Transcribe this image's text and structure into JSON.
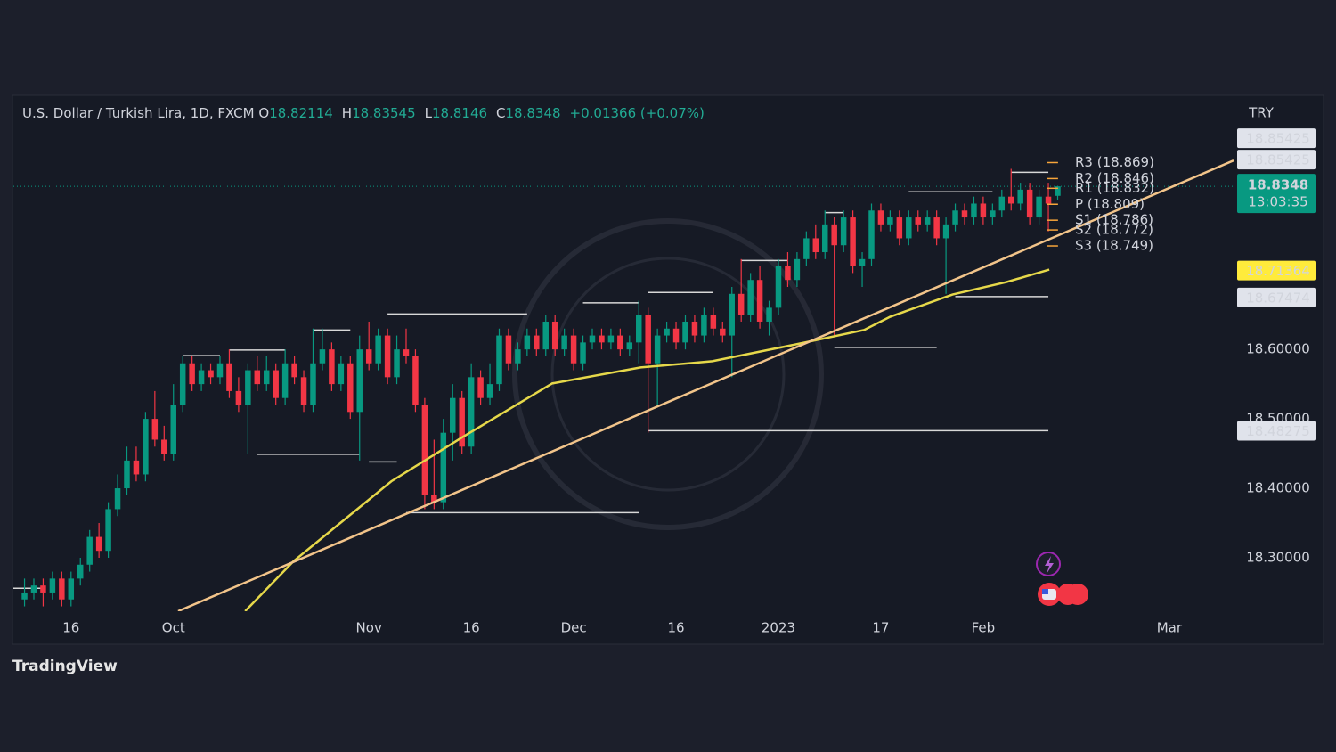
{
  "brand": "TradingView",
  "chart_data": {
    "type": "candlestick",
    "title": "U.S. Dollar / Turkish Lira, 1D, FXCM",
    "ohlc_letters": [
      "O",
      "H",
      "L",
      "C"
    ],
    "change": "+0.01366 (+0.07%)",
    "currency": "TRY",
    "countdown": "13:03:35",
    "up_color": "#089981",
    "down_color": "#f23645",
    "xlim": [
      -1.2,
      129.9
    ],
    "xticks": [
      {
        "value": 5,
        "label": "16"
      },
      {
        "value": 16,
        "label": "Oct"
      },
      {
        "value": 37,
        "label": "Nov"
      },
      {
        "value": 48,
        "label": "16"
      },
      {
        "value": 59,
        "label": "Dec"
      },
      {
        "value": 70,
        "label": "16"
      },
      {
        "value": 81,
        "label": "2023"
      },
      {
        "value": 92,
        "label": "17"
      },
      {
        "value": 103,
        "label": "Feb"
      },
      {
        "value": 123,
        "label": "Mar"
      }
    ],
    "ylim": [
      18.223,
      18.962
    ],
    "yticks": [
      {
        "value": 18.3,
        "label": "18.30000"
      },
      {
        "value": 18.4,
        "label": "18.40000"
      },
      {
        "value": 18.5,
        "label": "18.50000"
      },
      {
        "value": 18.6,
        "label": "18.60000"
      }
    ],
    "candles": [
      [
        18.24,
        18.27,
        18.23,
        18.25
      ],
      [
        18.25,
        18.27,
        18.24,
        18.26
      ],
      [
        18.26,
        18.27,
        18.23,
        18.25
      ],
      [
        18.25,
        18.28,
        18.24,
        18.27
      ],
      [
        18.27,
        18.28,
        18.23,
        18.24
      ],
      [
        18.24,
        18.28,
        18.23,
        18.27
      ],
      [
        18.27,
        18.3,
        18.26,
        18.29
      ],
      [
        18.29,
        18.34,
        18.28,
        18.33
      ],
      [
        18.33,
        18.35,
        18.3,
        18.31
      ],
      [
        18.31,
        18.38,
        18.3,
        18.37
      ],
      [
        18.37,
        18.42,
        18.36,
        18.4
      ],
      [
        18.4,
        18.46,
        18.39,
        18.44
      ],
      [
        18.44,
        18.46,
        18.41,
        18.42
      ],
      [
        18.42,
        18.51,
        18.41,
        18.5
      ],
      [
        18.5,
        18.54,
        18.46,
        18.47
      ],
      [
        18.47,
        18.49,
        18.44,
        18.45
      ],
      [
        18.45,
        18.55,
        18.44,
        18.52
      ],
      [
        18.52,
        18.59,
        18.51,
        18.58
      ],
      [
        18.58,
        18.59,
        18.54,
        18.55
      ],
      [
        18.55,
        18.58,
        18.54,
        18.57
      ],
      [
        18.57,
        18.58,
        18.55,
        18.56
      ],
      [
        18.56,
        18.59,
        18.55,
        18.58
      ],
      [
        18.58,
        18.6,
        18.53,
        18.54
      ],
      [
        18.54,
        18.56,
        18.51,
        18.52
      ],
      [
        18.52,
        18.58,
        18.45,
        18.57
      ],
      [
        18.57,
        18.59,
        18.54,
        18.55
      ],
      [
        18.55,
        18.59,
        18.54,
        18.57
      ],
      [
        18.57,
        18.58,
        18.52,
        18.53
      ],
      [
        18.53,
        18.6,
        18.52,
        18.58
      ],
      [
        18.58,
        18.59,
        18.55,
        18.56
      ],
      [
        18.56,
        18.57,
        18.51,
        18.52
      ],
      [
        18.52,
        18.63,
        18.51,
        18.58
      ],
      [
        18.58,
        18.63,
        18.57,
        18.6
      ],
      [
        18.6,
        18.61,
        18.54,
        18.55
      ],
      [
        18.55,
        18.59,
        18.54,
        18.58
      ],
      [
        18.58,
        18.59,
        18.5,
        18.51
      ],
      [
        18.51,
        18.62,
        18.44,
        18.6
      ],
      [
        18.6,
        18.64,
        18.57,
        18.58
      ],
      [
        18.58,
        18.63,
        18.57,
        18.62
      ],
      [
        18.62,
        18.63,
        18.55,
        18.56
      ],
      [
        18.56,
        18.62,
        18.55,
        18.6
      ],
      [
        18.6,
        18.63,
        18.58,
        18.59
      ],
      [
        18.59,
        18.6,
        18.51,
        18.52
      ],
      [
        18.52,
        18.53,
        18.37,
        18.39
      ],
      [
        18.39,
        18.47,
        18.37,
        18.38
      ],
      [
        18.38,
        18.5,
        18.37,
        18.48
      ],
      [
        18.48,
        18.55,
        18.44,
        18.53
      ],
      [
        18.53,
        18.54,
        18.45,
        18.46
      ],
      [
        18.46,
        18.58,
        18.45,
        18.56
      ],
      [
        18.56,
        18.57,
        18.52,
        18.53
      ],
      [
        18.53,
        18.58,
        18.52,
        18.55
      ],
      [
        18.55,
        18.63,
        18.54,
        18.62
      ],
      [
        18.62,
        18.63,
        18.57,
        18.58
      ],
      [
        18.58,
        18.61,
        18.57,
        18.6
      ],
      [
        18.6,
        18.63,
        18.59,
        18.62
      ],
      [
        18.62,
        18.63,
        18.59,
        18.6
      ],
      [
        18.6,
        18.65,
        18.59,
        18.64
      ],
      [
        18.64,
        18.65,
        18.59,
        18.6
      ],
      [
        18.6,
        18.63,
        18.59,
        18.62
      ],
      [
        18.62,
        18.63,
        18.57,
        18.58
      ],
      [
        18.58,
        18.62,
        18.57,
        18.61
      ],
      [
        18.61,
        18.63,
        18.6,
        18.62
      ],
      [
        18.62,
        18.63,
        18.6,
        18.61
      ],
      [
        18.61,
        18.63,
        18.6,
        18.62
      ],
      [
        18.62,
        18.63,
        18.59,
        18.6
      ],
      [
        18.6,
        18.62,
        18.59,
        18.61
      ],
      [
        18.61,
        18.67,
        18.58,
        18.65
      ],
      [
        18.65,
        18.66,
        18.48,
        18.58
      ],
      [
        18.58,
        18.63,
        18.52,
        18.62
      ],
      [
        18.62,
        18.64,
        18.61,
        18.63
      ],
      [
        18.63,
        18.64,
        18.6,
        18.61
      ],
      [
        18.61,
        18.65,
        18.6,
        18.64
      ],
      [
        18.64,
        18.65,
        18.61,
        18.62
      ],
      [
        18.62,
        18.66,
        18.61,
        18.65
      ],
      [
        18.65,
        18.66,
        18.62,
        18.63
      ],
      [
        18.63,
        18.64,
        18.61,
        18.62
      ],
      [
        18.62,
        18.69,
        18.56,
        18.68
      ],
      [
        18.68,
        18.73,
        18.64,
        18.65
      ],
      [
        18.65,
        18.71,
        18.64,
        18.7
      ],
      [
        18.7,
        18.72,
        18.63,
        18.64
      ],
      [
        18.64,
        18.67,
        18.62,
        18.66
      ],
      [
        18.66,
        18.73,
        18.65,
        18.72
      ],
      [
        18.72,
        18.74,
        18.69,
        18.7
      ],
      [
        18.7,
        18.74,
        18.69,
        18.73
      ],
      [
        18.73,
        18.77,
        18.72,
        18.76
      ],
      [
        18.76,
        18.78,
        18.73,
        18.74
      ],
      [
        18.74,
        18.8,
        18.73,
        18.78
      ],
      [
        18.78,
        18.79,
        18.62,
        18.75
      ],
      [
        18.75,
        18.8,
        18.74,
        18.79
      ],
      [
        18.79,
        18.8,
        18.71,
        18.72
      ],
      [
        18.72,
        18.74,
        18.69,
        18.73
      ],
      [
        18.73,
        18.81,
        18.72,
        18.8
      ],
      [
        18.8,
        18.81,
        18.77,
        18.78
      ],
      [
        18.78,
        18.8,
        18.77,
        18.79
      ],
      [
        18.79,
        18.8,
        18.75,
        18.76
      ],
      [
        18.76,
        18.8,
        18.75,
        18.79
      ],
      [
        18.79,
        18.8,
        18.77,
        18.78
      ],
      [
        18.78,
        18.8,
        18.77,
        18.79
      ],
      [
        18.79,
        18.8,
        18.75,
        18.76
      ],
      [
        18.76,
        18.79,
        18.68,
        18.78
      ],
      [
        18.78,
        18.81,
        18.77,
        18.8
      ],
      [
        18.8,
        18.81,
        18.78,
        18.79
      ],
      [
        18.79,
        18.82,
        18.78,
        18.81
      ],
      [
        18.81,
        18.82,
        18.78,
        18.79
      ],
      [
        18.79,
        18.81,
        18.78,
        18.8
      ],
      [
        18.8,
        18.83,
        18.79,
        18.82
      ],
      [
        18.82,
        18.86,
        18.8,
        18.81
      ],
      [
        18.81,
        18.84,
        18.8,
        18.83
      ],
      [
        18.83,
        18.84,
        18.78,
        18.79
      ],
      [
        18.79,
        18.83,
        18.78,
        18.82
      ],
      [
        18.82,
        18.84,
        18.77,
        18.81
      ],
      [
        18.82114,
        18.83545,
        18.8146,
        18.8348
      ]
    ],
    "moving_average": {
      "color": "#e6d84a",
      "x": [
        23.7,
        28.9,
        39.4,
        47.1,
        56.7,
        66.2,
        73.9,
        83.5,
        90.2,
        93.0,
        99.7,
        105.5,
        110.1
      ],
      "values": [
        18.223,
        18.295,
        18.41,
        18.474,
        18.551,
        18.574,
        18.583,
        18.609,
        18.628,
        18.647,
        18.679,
        18.697,
        18.715
      ]
    },
    "trendline": {
      "color": "#f2c48a",
      "x": [
        16.5,
        129.9
      ],
      "values": [
        18.223,
        18.872
      ]
    },
    "levels": [
      {
        "x": [
          -1.2,
          2
        ],
        "value": 18.256
      },
      {
        "x": [
          17,
          21
        ],
        "value": 18.591
      },
      {
        "x": [
          22,
          28
        ],
        "value": 18.599
      },
      {
        "x": [
          25,
          36
        ],
        "value": 18.449
      },
      {
        "x": [
          31,
          35
        ],
        "value": 18.628
      },
      {
        "x": [
          37,
          40
        ],
        "value": 18.438
      },
      {
        "x": [
          39,
          54
        ],
        "value": 18.651
      },
      {
        "x": [
          41,
          66
        ],
        "value": 18.365
      },
      {
        "x": [
          60,
          66
        ],
        "value": 18.667
      },
      {
        "x": [
          67,
          74
        ],
        "value": 18.682
      },
      {
        "x": [
          67,
          110
        ],
        "value": 18.483
      },
      {
        "x": [
          77,
          82
        ],
        "value": 18.728
      },
      {
        "x": [
          86,
          88
        ],
        "value": 18.797
      },
      {
        "x": [
          87,
          98
        ],
        "value": 18.603
      },
      {
        "x": [
          95,
          104
        ],
        "value": 18.827
      },
      {
        "x": [
          100,
          110
        ],
        "value": 18.676
      },
      {
        "x": [
          106,
          110
        ],
        "value": 18.855
      }
    ],
    "pivot_color": "#f7a53a",
    "pivots": [
      {
        "label": "R3 (18.869)",
        "value": 18.869
      },
      {
        "label": "R2 (18.846)",
        "value": 18.846
      },
      {
        "label": "R1 (18.832)",
        "value": 18.832
      },
      {
        "label": "P (18.809)",
        "value": 18.809
      },
      {
        "label": "S1 (18.786)",
        "value": 18.786
      },
      {
        "label": "S2 (18.772)",
        "value": 18.772
      },
      {
        "label": "S3 (18.749)",
        "value": 18.749
      }
    ],
    "price_tags": [
      {
        "value": 18.85425,
        "color": "#e0e3eb"
      },
      {
        "value": 18.85425,
        "color": "#e0e3eb"
      },
      {
        "value": 18.71364,
        "color": "#ffeb3b"
      },
      {
        "value": 18.67474,
        "color": "#e0e3eb"
      },
      {
        "value": 18.48275,
        "color": "#e0e3eb"
      }
    ]
  }
}
